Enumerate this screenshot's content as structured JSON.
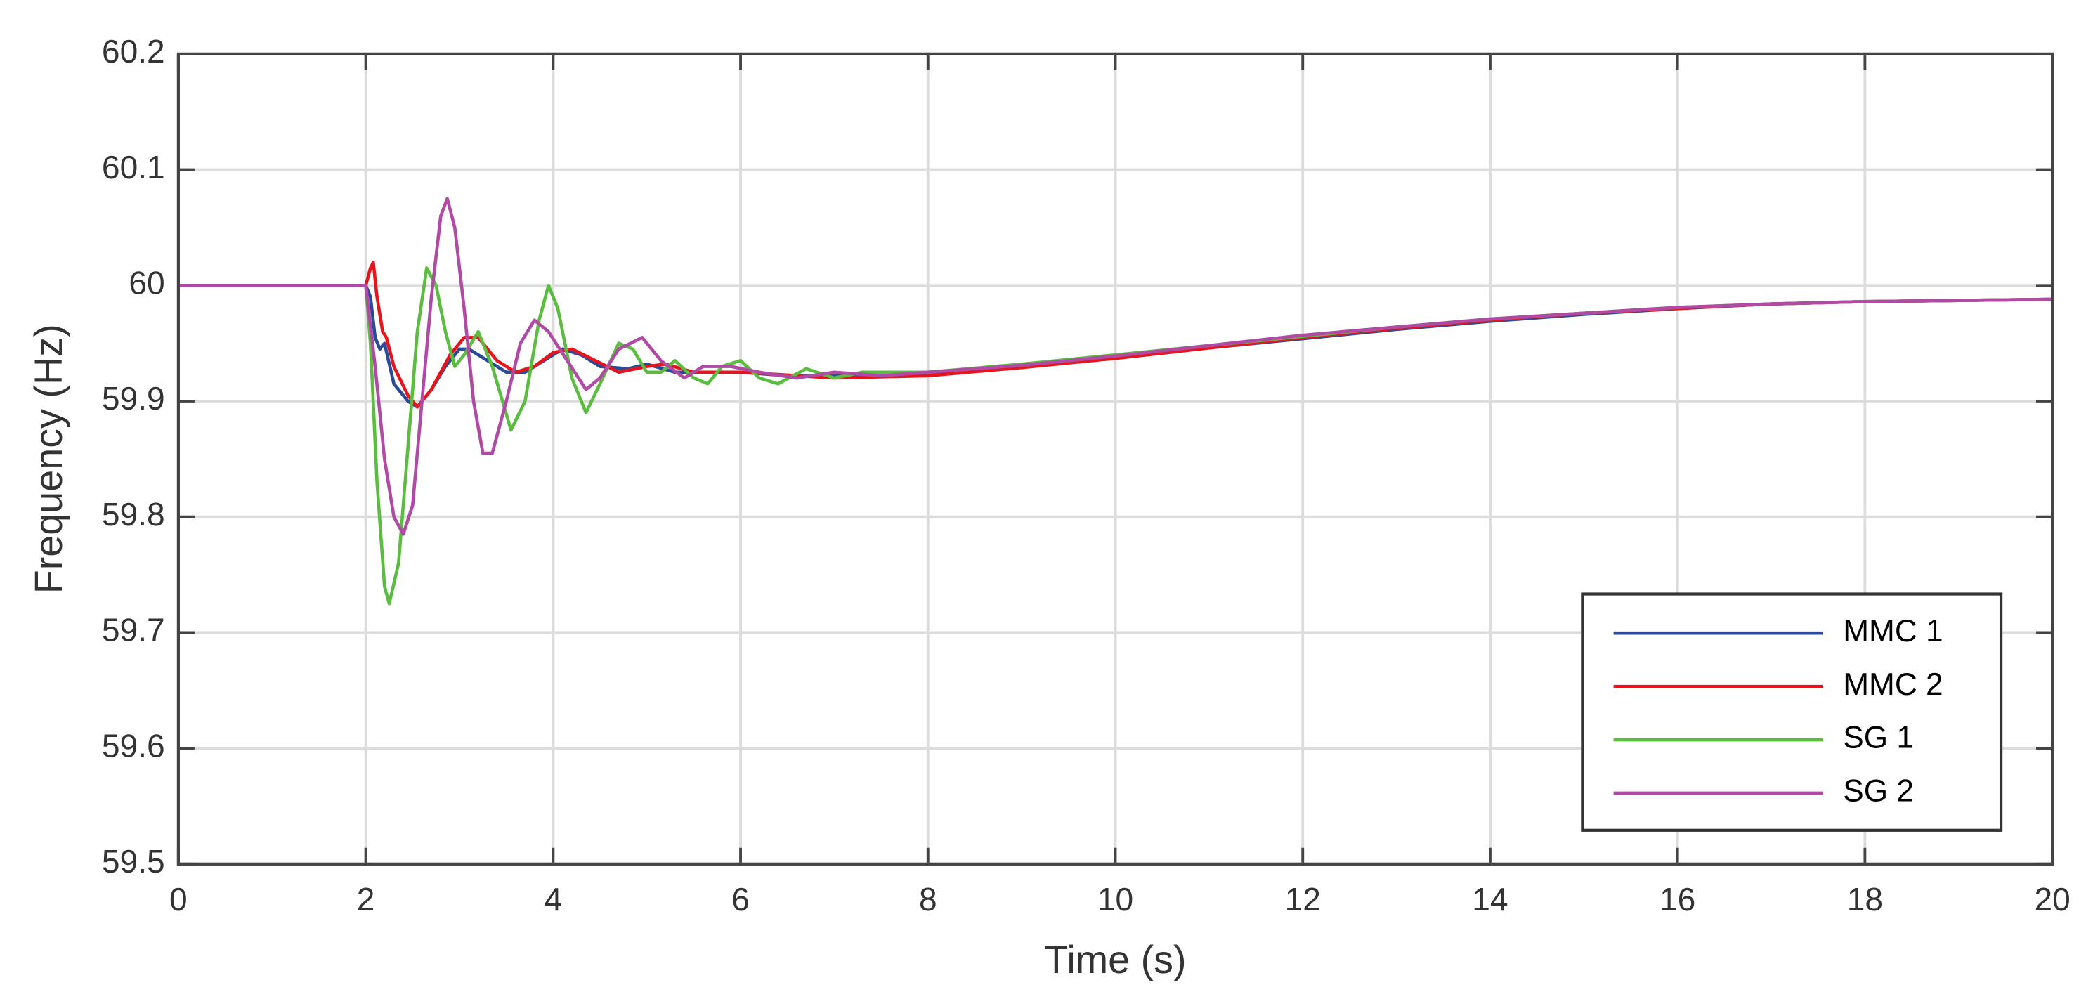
{
  "chart_data": {
    "type": "line",
    "xlabel": "Time (s)",
    "ylabel": "Frequency (Hz)",
    "xlim": [
      0,
      20
    ],
    "ylim": [
      59.5,
      60.2
    ],
    "xticks": [
      0,
      2,
      4,
      6,
      8,
      10,
      12,
      14,
      16,
      18,
      20
    ],
    "yticks": [
      59.5,
      59.6,
      59.7,
      59.8,
      59.9,
      60,
      60.1,
      60.2
    ],
    "grid": true,
    "legend": "lower right",
    "series": [
      {
        "name": "MMC 1",
        "color": "#2b4a9a",
        "x": [
          0,
          2,
          2.05,
          2.1,
          2.15,
          2.2,
          2.3,
          2.45,
          2.55,
          2.7,
          2.85,
          3.0,
          3.1,
          3.3,
          3.5,
          3.7,
          3.9,
          4.1,
          4.3,
          4.5,
          4.8,
          5.0,
          5.3,
          5.6,
          6,
          6.5,
          7,
          8,
          9,
          10,
          11,
          12,
          13,
          14,
          15,
          16,
          17,
          18,
          19,
          20
        ],
        "values": [
          60,
          60,
          59.99,
          59.955,
          59.945,
          59.95,
          59.915,
          59.9,
          59.895,
          59.91,
          59.93,
          59.945,
          59.945,
          59.935,
          59.925,
          59.925,
          59.935,
          59.945,
          59.94,
          59.93,
          59.928,
          59.932,
          59.925,
          59.925,
          59.925,
          59.922,
          59.922,
          59.923,
          59.93,
          59.937,
          59.946,
          59.954,
          59.962,
          59.969,
          59.975,
          59.98,
          59.984,
          59.986,
          59.987,
          59.988
        ]
      },
      {
        "name": "MMC 2",
        "color": "#e8141c",
        "x": [
          0,
          2,
          2.05,
          2.08,
          2.12,
          2.18,
          2.22,
          2.3,
          2.45,
          2.55,
          2.7,
          2.9,
          3.05,
          3.2,
          3.4,
          3.6,
          3.8,
          4.0,
          4.2,
          4.45,
          4.7,
          5.0,
          5.2,
          5.5,
          6,
          7,
          8,
          9,
          10,
          11,
          12,
          13,
          14,
          15,
          16,
          17,
          18,
          19,
          20
        ],
        "values": [
          60,
          60,
          60.015,
          60.02,
          59.99,
          59.96,
          59.955,
          59.93,
          59.905,
          59.895,
          59.91,
          59.94,
          59.955,
          59.955,
          59.935,
          59.925,
          59.93,
          59.942,
          59.945,
          59.935,
          59.925,
          59.93,
          59.932,
          59.925,
          59.925,
          59.92,
          59.922,
          59.929,
          59.937,
          59.946,
          59.955,
          59.963,
          59.97,
          59.976,
          59.98,
          59.984,
          59.986,
          59.987,
          59.988
        ]
      },
      {
        "name": "SG 1",
        "color": "#5bbd3f",
        "x": [
          0,
          2,
          2.05,
          2.12,
          2.2,
          2.25,
          2.35,
          2.45,
          2.55,
          2.65,
          2.75,
          2.85,
          2.95,
          3.05,
          3.2,
          3.35,
          3.55,
          3.7,
          3.85,
          3.95,
          4.05,
          4.2,
          4.35,
          4.5,
          4.7,
          4.85,
          5.0,
          5.15,
          5.3,
          5.5,
          5.65,
          5.8,
          6.0,
          6.2,
          6.4,
          6.7,
          7.0,
          7.3,
          8,
          9,
          10,
          11,
          12,
          13,
          14,
          15,
          16,
          17,
          18,
          19,
          20
        ],
        "values": [
          60,
          60,
          59.95,
          59.83,
          59.74,
          59.725,
          59.76,
          59.86,
          59.96,
          60.015,
          60.0,
          59.96,
          59.93,
          59.94,
          59.96,
          59.93,
          59.875,
          59.9,
          59.97,
          60.0,
          59.98,
          59.92,
          59.89,
          59.915,
          59.95,
          59.945,
          59.925,
          59.925,
          59.935,
          59.92,
          59.915,
          59.93,
          59.935,
          59.92,
          59.915,
          59.928,
          59.92,
          59.925,
          59.925,
          59.932,
          59.94,
          59.948,
          59.956,
          59.964,
          59.971,
          59.976,
          59.981,
          59.984,
          59.986,
          59.987,
          59.988
        ]
      },
      {
        "name": "SG 2",
        "color": "#b04aa5",
        "x": [
          0,
          2,
          2.1,
          2.2,
          2.3,
          2.4,
          2.5,
          2.6,
          2.7,
          2.8,
          2.87,
          2.95,
          3.05,
          3.15,
          3.25,
          3.35,
          3.5,
          3.65,
          3.8,
          3.95,
          4.15,
          4.35,
          4.5,
          4.7,
          4.95,
          5.15,
          5.4,
          5.6,
          5.9,
          6.2,
          6.6,
          7.0,
          7.5,
          8,
          9,
          10,
          11,
          12,
          13,
          14,
          15,
          16,
          17,
          18,
          19,
          20
        ],
        "values": [
          60,
          60,
          59.93,
          59.85,
          59.8,
          59.785,
          59.81,
          59.9,
          59.99,
          60.06,
          60.075,
          60.05,
          59.98,
          59.9,
          59.855,
          59.855,
          59.9,
          59.95,
          59.97,
          59.96,
          59.935,
          59.91,
          59.92,
          59.945,
          59.955,
          59.935,
          59.92,
          59.93,
          59.93,
          59.925,
          59.92,
          59.925,
          59.922,
          59.925,
          59.931,
          59.939,
          59.948,
          59.957,
          59.964,
          59.971,
          59.976,
          59.981,
          59.984,
          59.986,
          59.987,
          59.988
        ]
      }
    ]
  }
}
